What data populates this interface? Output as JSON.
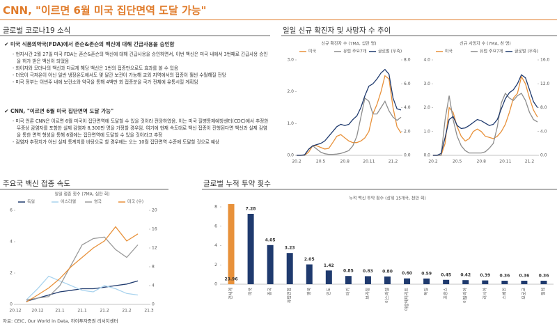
{
  "header": {
    "title": "CNN, \"이르면 6월 미국 집단면역 도달 가능\""
  },
  "news": {
    "title": "글로벌 코로나19 소식",
    "items": [
      {
        "heading": "미국 식품의약국(FDA)에서 존슨&존슨의 백신에 대해 긴급사용을 승인함",
        "bullets": [
          "현지시간 2월 27일 미국 FDA는 존슨&존슨의 백신에 대해 긴급사용을 승인하면서, 이번 백신은 미국 내에서 3번째로 긴급사용 승인을 허가 받은 백신이 되었음",
          "화이자와 모더나의 백신과 다르게 해당 백신은 1번의 접종만으로도 효과를 볼 수 있음",
          "더욱이 극저온이 아닌 일반 냉장온도에서도 몇 달간 보관이 가능해 교외 지역에서의 접종이 훨씬 수월해질 전망",
          "미국 정부는 이번주 내에 보건소와 약국을 통해 4백만 회 접종분을 국가 전체에 유통시킬 계획임"
        ]
      },
      {
        "heading": "CNN, \"이르면 6월 미국 집단면역 도달 가능\"",
        "bullets": [
          "미국 언론 CNN은 이르면 6월 미국이 집단면역에 도달할 수 있을 것이라 전망하였음. 이는 미국 질병통제예방센터(CDC)에서 추정한 무증상 감염자를 포함한 실제 감염자 8,300만 명을 가정할 경우임. 여기에 현재 속도대로 백신 접종이 진행된다면 백신과 실제 감염을 통한 면역 형성을 통해 6월에는 집단면역에 도달할 수 있을 것이라고 추정",
          "감염자 추정치가 아닌 실제 통계치를 바탕으로 할 경우에는 오는 10월 집단면역 수준에 도달할 것으로 예상"
        ]
      }
    ]
  },
  "panels": [
    "일일 신규 확진자 및 사망자 수 추이",
    "주요국 백신 접종 속도",
    "글로벌 누적 투약 횟수"
  ],
  "chart_data": [
    {
      "type": "line",
      "title": "신규 확진자 수 (7MA, 십만 명)",
      "categories": [
        "20.2",
        null,
        null,
        null,
        null,
        null,
        "20.5",
        null,
        null,
        null,
        null,
        null,
        "20.8",
        null,
        null,
        null,
        null,
        null,
        "20.11",
        null,
        null,
        null,
        null,
        null,
        "21.2",
        null,
        null
      ],
      "ylim": [
        0,
        3
      ],
      "yticks": [
        {
          "value": 0,
          "label": "0.0"
        },
        {
          "value": 1,
          "label": "1.0"
        },
        {
          "value": 2,
          "label": "2.0"
        },
        {
          "value": 3,
          "label": "3.0"
        }
      ],
      "y2lim": [
        0,
        8
      ],
      "y2ticks": [
        {
          "value": 0,
          "label": "0.0"
        },
        {
          "value": 2,
          "label": "2.0"
        },
        {
          "value": 4,
          "label": "4.0"
        },
        {
          "value": 6,
          "label": "6.0"
        },
        {
          "value": 8,
          "label": "8.0"
        }
      ],
      "series": [
        {
          "name": "미국",
          "color": "#e8913a",
          "values": [
            0,
            0,
            0,
            0.1,
            0.3,
            0.3,
            0.25,
            0.2,
            0.22,
            0.4,
            0.6,
            0.65,
            0.55,
            0.45,
            0.4,
            0.4,
            0.45,
            0.55,
            0.75,
            1.3,
            1.6,
            2.0,
            2.5,
            2.4,
            1.5,
            0.9,
            0.7
          ]
        },
        {
          "name": "유럽 주요7개",
          "color": "#8c8c8c",
          "values": [
            0,
            0,
            0,
            0.2,
            0.3,
            0.2,
            0.1,
            0.05,
            0.03,
            0.03,
            0.04,
            0.06,
            0.1,
            0.15,
            0.3,
            0.6,
            1.2,
            1.8,
            1.7,
            1.3,
            1.3,
            1.5,
            1.7,
            1.4,
            1.2,
            1.1,
            1.2
          ]
        },
        {
          "name": "글로벌 (우축)",
          "color": "#1f3a6e",
          "axis": "y2",
          "values": [
            0,
            0,
            0.05,
            0.5,
            0.8,
            0.9,
            1.0,
            1.2,
            1.6,
            2.0,
            2.4,
            2.6,
            2.5,
            2.6,
            3.0,
            3.3,
            4.0,
            5.0,
            5.8,
            6.0,
            6.4,
            6.9,
            7.2,
            6.8,
            4.8,
            3.9,
            3.8
          ]
        }
      ]
    },
    {
      "type": "line",
      "title": "신규 사망자 수 (7MA, 천 명)",
      "categories": [
        "20.2",
        null,
        null,
        null,
        null,
        null,
        "20.5",
        null,
        null,
        null,
        null,
        null,
        "20.8",
        null,
        null,
        null,
        null,
        null,
        "20.11",
        null,
        null,
        null,
        null,
        null,
        "21.2",
        null,
        null
      ],
      "ylim": [
        0,
        4
      ],
      "yticks": [
        {
          "value": 0,
          "label": "0.0"
        },
        {
          "value": 1,
          "label": "1.0"
        },
        {
          "value": 2,
          "label": "2.0"
        },
        {
          "value": 3,
          "label": "3.0"
        },
        {
          "value": 4,
          "label": "4.0"
        }
      ],
      "y2lim": [
        0,
        16
      ],
      "y2ticks": [
        {
          "value": 0,
          "label": "0.0"
        },
        {
          "value": 4,
          "label": "4.0"
        },
        {
          "value": 8,
          "label": "8.0"
        },
        {
          "value": 12,
          "label": "12.0"
        },
        {
          "value": 16,
          "label": "16.0"
        }
      ],
      "series": [
        {
          "name": "미국",
          "color": "#e8913a",
          "values": [
            0,
            0,
            0,
            0.5,
            2.0,
            1.8,
            1.2,
            0.8,
            0.6,
            0.7,
            1.0,
            1.1,
            1.0,
            0.8,
            0.75,
            0.7,
            0.8,
            1.0,
            1.3,
            1.8,
            2.4,
            2.6,
            3.3,
            3.0,
            2.4,
            1.9,
            1.6
          ]
        },
        {
          "name": "유럽 주요7개",
          "color": "#8c8c8c",
          "values": [
            0,
            0,
            0,
            1.5,
            2.5,
            1.5,
            0.8,
            0.4,
            0.2,
            0.1,
            0.1,
            0.1,
            0.1,
            0.15,
            0.3,
            0.5,
            1.2,
            2.2,
            2.6,
            2.4,
            2.3,
            2.5,
            2.6,
            2.3,
            1.8,
            1.5,
            1.4
          ]
        },
        {
          "name": "글로벌 (우축)",
          "color": "#1f3a6e",
          "axis": "y2",
          "values": [
            0,
            0,
            0.3,
            3,
            6,
            6.5,
            5,
            4.5,
            4.6,
            5,
            5.5,
            6,
            5.8,
            5.4,
            5,
            5.2,
            6,
            7.8,
            9.5,
            10.5,
            11,
            12,
            13.5,
            13,
            11,
            9,
            8
          ]
        }
      ]
    },
    {
      "type": "line",
      "title": "일일 접종 횟수 (7MA, 십만 회)",
      "categories": [
        "20.12",
        null,
        "20.12",
        null,
        "21.1",
        null,
        "21.1",
        null,
        "21.2",
        null,
        "21.2",
        null,
        "21.3"
      ],
      "ylim": [
        0,
        6
      ],
      "yticks": [
        0,
        2,
        4,
        6
      ],
      "y2lim": [
        0,
        20
      ],
      "y2ticks": [
        0,
        4,
        8,
        12,
        16,
        20
      ],
      "series": [
        {
          "name": "독일",
          "color": "#1f3a6e",
          "values": [
            null,
            0.2,
            0.4,
            0.6,
            0.8,
            0.9,
            1.0,
            1.0,
            1.1,
            1.2,
            1.3,
            1.5,
            null
          ]
        },
        {
          "name": "이스라엘",
          "color": "#a9d3ee",
          "values": [
            null,
            0.3,
            1.0,
            1.8,
            1.5,
            1.2,
            0.9,
            0.8,
            1.2,
            1.0,
            0.7,
            0.6,
            null
          ]
        },
        {
          "name": "영국",
          "color": "#9a9a9a",
          "values": [
            null,
            0.3,
            0.4,
            0.5,
            1.2,
            2.5,
            3.8,
            4.2,
            4.3,
            3.5,
            3.0,
            3.8,
            null
          ]
        },
        {
          "name": "미국 (우)",
          "color": "#e8913a",
          "axis": "y2",
          "values": [
            null,
            0.5,
            2,
            3.5,
            5.5,
            8,
            10,
            12,
            13.5,
            16.5,
            13.5,
            15,
            null
          ]
        }
      ]
    },
    {
      "type": "bar",
      "title": "누적 백신 투약 횟수 (상위 15개국, 천만 회)",
      "categories": [
        "전세계",
        "미국",
        "중국",
        "유럽연합",
        "영국",
        "인도",
        "터키",
        "브라질",
        "이스라엘",
        "아랍에미리트",
        "독일",
        "프랑스",
        "이탈리아",
        "러시아",
        "스페인",
        "모로코",
        "칠레"
      ],
      "values": [
        23.96,
        7.28,
        4.05,
        3.23,
        2.05,
        1.42,
        0.85,
        0.83,
        0.8,
        0.6,
        0.59,
        0.45,
        0.42,
        0.39,
        0.36,
        0.36,
        0.36
      ],
      "value_labels": [
        "23.96",
        "7.28",
        "4.05",
        "3.23",
        "2.05",
        "1.42",
        "0.85",
        "0.83",
        "0.80",
        "0.60",
        "0.59",
        "0.45",
        "0.42",
        "0.39",
        "0.36",
        "0.36",
        "0.36"
      ],
      "colors": [
        "#e8913a",
        "#1f3a6e",
        "#1f3a6e",
        "#1f3a6e",
        "#1f3a6e",
        "#1f3a6e",
        "#1f3a6e",
        "#1f3a6e",
        "#1f3a6e",
        "#1f3a6e",
        "#1f3a6e",
        "#1f3a6e",
        "#1f3a6e",
        "#1f3a6e",
        "#1f3a6e",
        "#1f3a6e",
        "#1f3a6e"
      ],
      "ylim": [
        0,
        8
      ],
      "yticks": [
        0,
        2,
        4,
        6,
        8
      ]
    }
  ],
  "source": "자료: CEIC, Our World in Data, 하이투자증권 리서치센터"
}
